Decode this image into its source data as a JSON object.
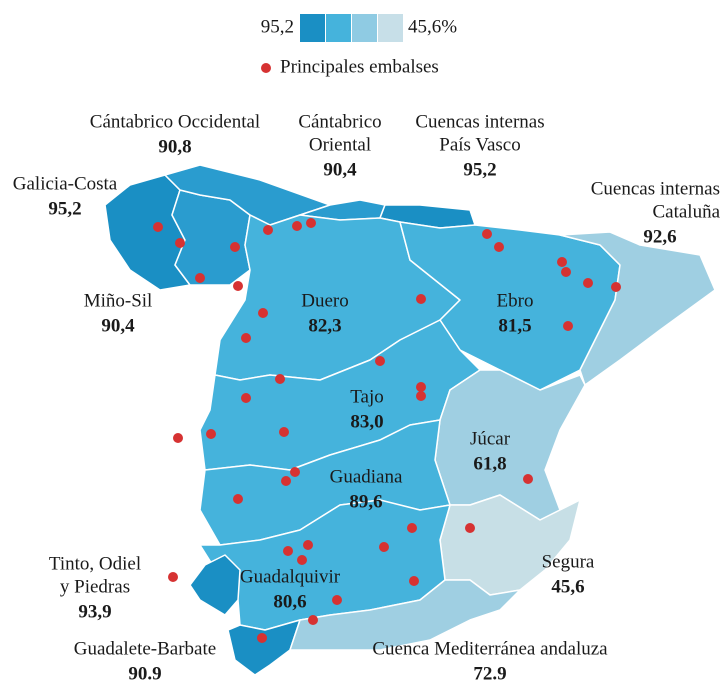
{
  "legend": {
    "high": "95,2",
    "low": "45,6%",
    "colors": [
      "#1a8fc4",
      "#45b3dc",
      "#8fcbe3",
      "#c7dfe8"
    ],
    "reservoirs": "Principales embalses",
    "reservoir_color": "#d63232"
  },
  "basins": [
    {
      "name": [
        "Galicia-Costa"
      ],
      "value": "95,2",
      "color": "#1a8fc4"
    },
    {
      "name": [
        "Miño-Sil"
      ],
      "value": "90,4",
      "color": "#2a9ccf"
    },
    {
      "name": [
        "Cántabrico Occidental"
      ],
      "value": "90,8",
      "color": "#2a9ccf"
    },
    {
      "name": [
        "Cántabrico",
        "Oriental"
      ],
      "value": "90,4",
      "color": "#2a9ccf"
    },
    {
      "name": [
        "Cuencas internas",
        "País Vasco"
      ],
      "value": "95,2",
      "color": "#1a8fc4"
    },
    {
      "name": [
        "Duero"
      ],
      "value": "82,3",
      "color": "#45b3dc"
    },
    {
      "name": [
        "Ebro"
      ],
      "value": "81,5",
      "color": "#45b3dc"
    },
    {
      "name": [
        "Cuencas internas",
        "Cataluña"
      ],
      "value": "92,6",
      "color": "#9fcfe2"
    },
    {
      "name": [
        "Tajo"
      ],
      "value": "83,0",
      "color": "#45b3dc"
    },
    {
      "name": [
        "Júcar"
      ],
      "value": "61,8",
      "color": "#9fcfe2"
    },
    {
      "name": [
        "Guadiana"
      ],
      "value": "89,6",
      "color": "#45b3dc"
    },
    {
      "name": [
        "Segura"
      ],
      "value": "45,6",
      "color": "#c7dfe6"
    },
    {
      "name": [
        "Guadalquivir"
      ],
      "value": "80,6",
      "color": "#45b3dc"
    },
    {
      "name": [
        "Tinto, Odiel",
        "y Piedras"
      ],
      "value": "93,9",
      "color": "#1a8fc4"
    },
    {
      "name": [
        "Guadalete-Barbate"
      ],
      "value": "90.9",
      "color": "#1a8fc4"
    },
    {
      "name": [
        "Cuenca Mediterránea andaluza"
      ],
      "value": "72.9",
      "color": "#9fcfe2"
    }
  ]
}
